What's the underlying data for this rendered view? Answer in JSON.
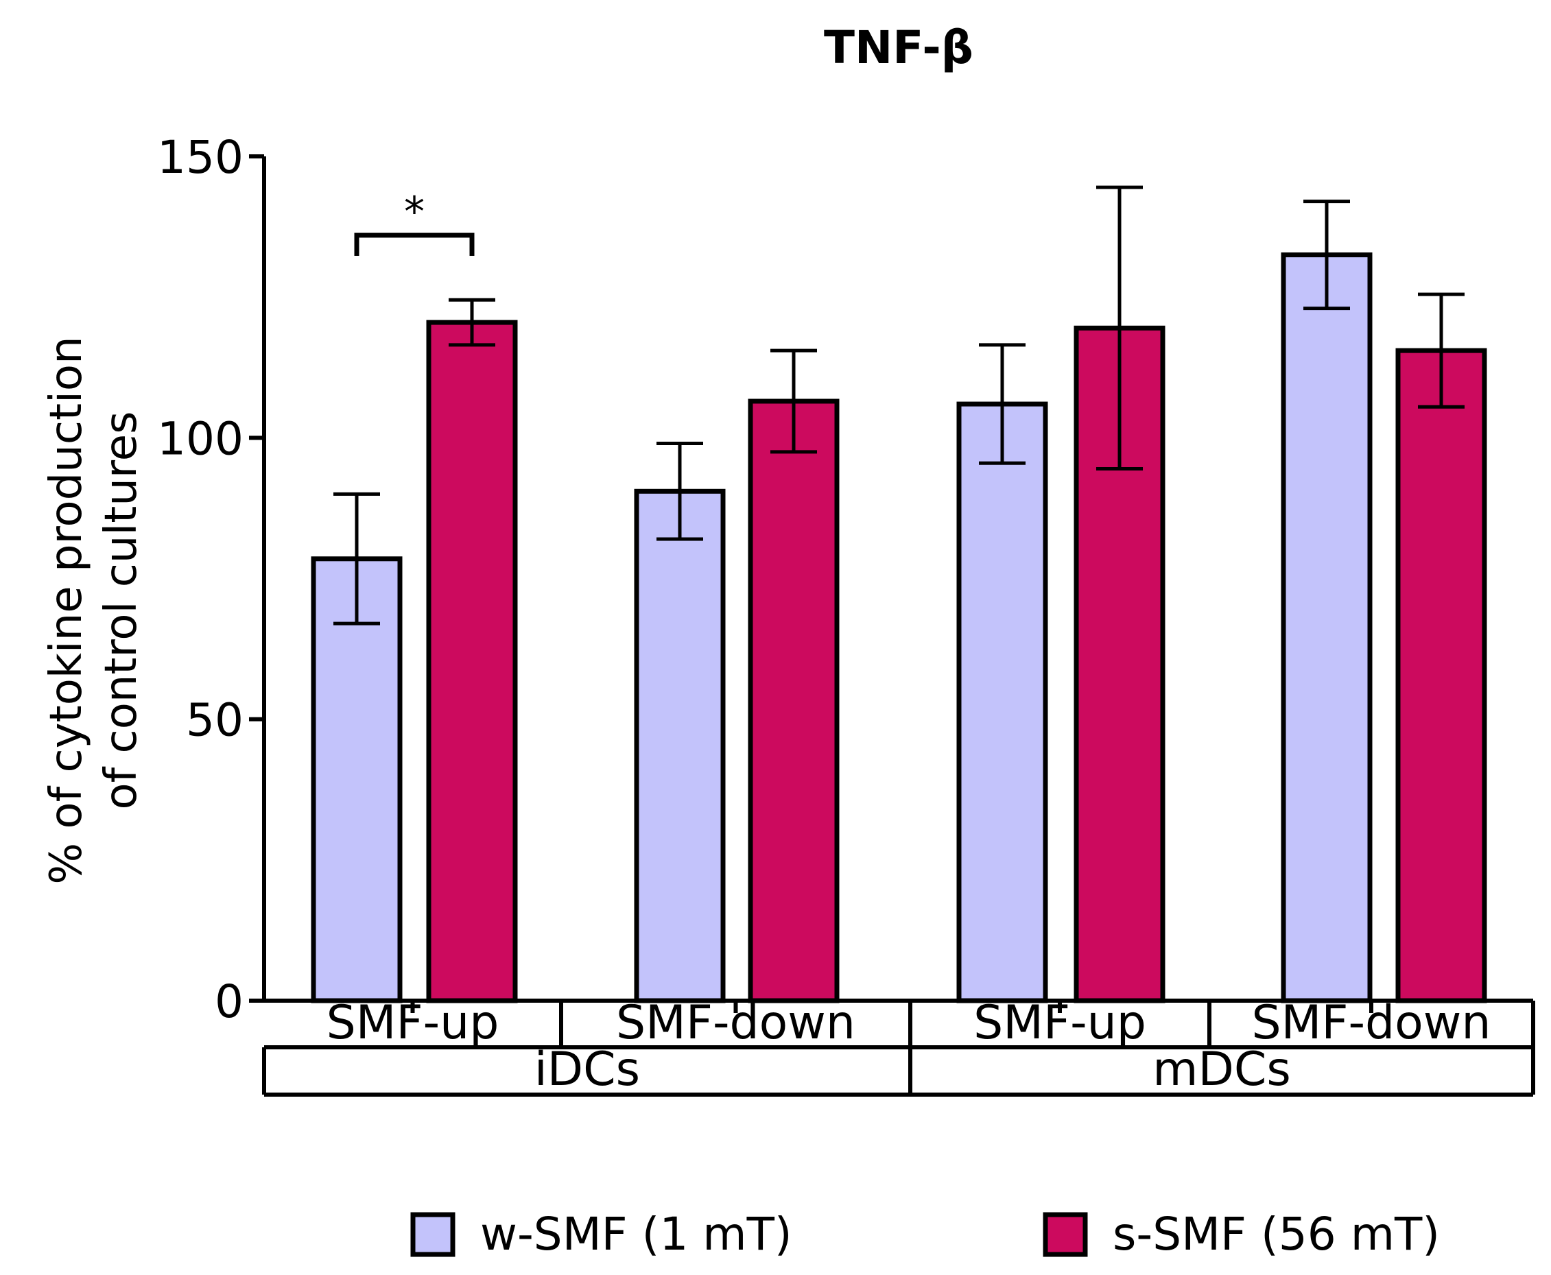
{
  "chart_data": {
    "type": "bar",
    "title": "TNF-β",
    "ylabel": "% of cytokine production\nof control cultures",
    "ylim": [
      0,
      150
    ],
    "yticks": [
      0,
      50,
      100,
      150
    ],
    "categories": [
      "SMF-up",
      "SMF-down",
      "SMF-up",
      "SMF-down"
    ],
    "groups": [
      {
        "label": "iDCs",
        "categories": [
          0,
          1
        ]
      },
      {
        "label": "mDCs",
        "categories": [
          2,
          3
        ]
      }
    ],
    "series": [
      {
        "name": "w-SMF (1 mT)",
        "color": "#c3c3fb",
        "values": [
          78.5,
          90.5,
          106,
          132.5
        ],
        "errors": [
          11.5,
          8.5,
          10.5,
          9.5
        ]
      },
      {
        "name": "s-SMF (56 mT)",
        "color": "#cc0a5e",
        "values": [
          120.5,
          106.5,
          119.5,
          115.5
        ],
        "errors": [
          4,
          9,
          25,
          10
        ]
      }
    ],
    "annotations": [
      {
        "text": "*",
        "category": 0,
        "between_series": [
          0,
          1
        ]
      }
    ],
    "legend_position": "bottom",
    "grid": false
  }
}
